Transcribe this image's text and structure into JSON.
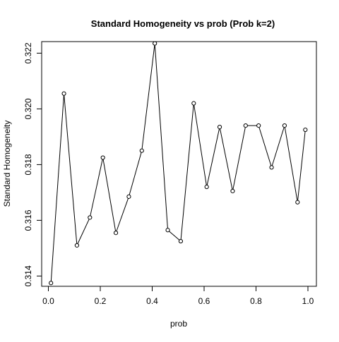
{
  "chart_data": {
    "type": "line",
    "title": "Standard Homogeneity vs prob (Prob k=2)",
    "xlabel": "prob",
    "ylabel": "Standard Homogeneity",
    "xlim": [
      0.0,
      1.0
    ],
    "ylim": [
      0.3137,
      0.3224
    ],
    "xticks": [
      "0.0",
      "0.2",
      "0.4",
      "0.6",
      "0.8",
      "1.0"
    ],
    "yticks": [
      "0.314",
      "0.316",
      "0.318",
      "0.320",
      "0.322"
    ],
    "grid": false,
    "legend": "none",
    "markers": "open-circle",
    "series": [
      {
        "x": [
          0.01,
          0.06,
          0.11,
          0.16,
          0.21,
          0.26,
          0.31,
          0.36,
          0.41,
          0.46,
          0.51,
          0.56,
          0.61,
          0.66,
          0.71,
          0.76,
          0.81,
          0.86,
          0.91,
          0.96,
          0.99
        ],
        "values": [
          0.31375,
          0.32055,
          0.3151,
          0.3161,
          0.31825,
          0.31555,
          0.31685,
          0.3185,
          0.32235,
          0.31565,
          0.31525,
          0.3202,
          0.3172,
          0.31935,
          0.31705,
          0.3194,
          0.3194,
          0.3179,
          0.3194,
          0.31665,
          0.31925
        ]
      }
    ],
    "colors": {
      "line": "#000000",
      "marker_fill": "#ffffff",
      "axis": "#000000"
    }
  }
}
